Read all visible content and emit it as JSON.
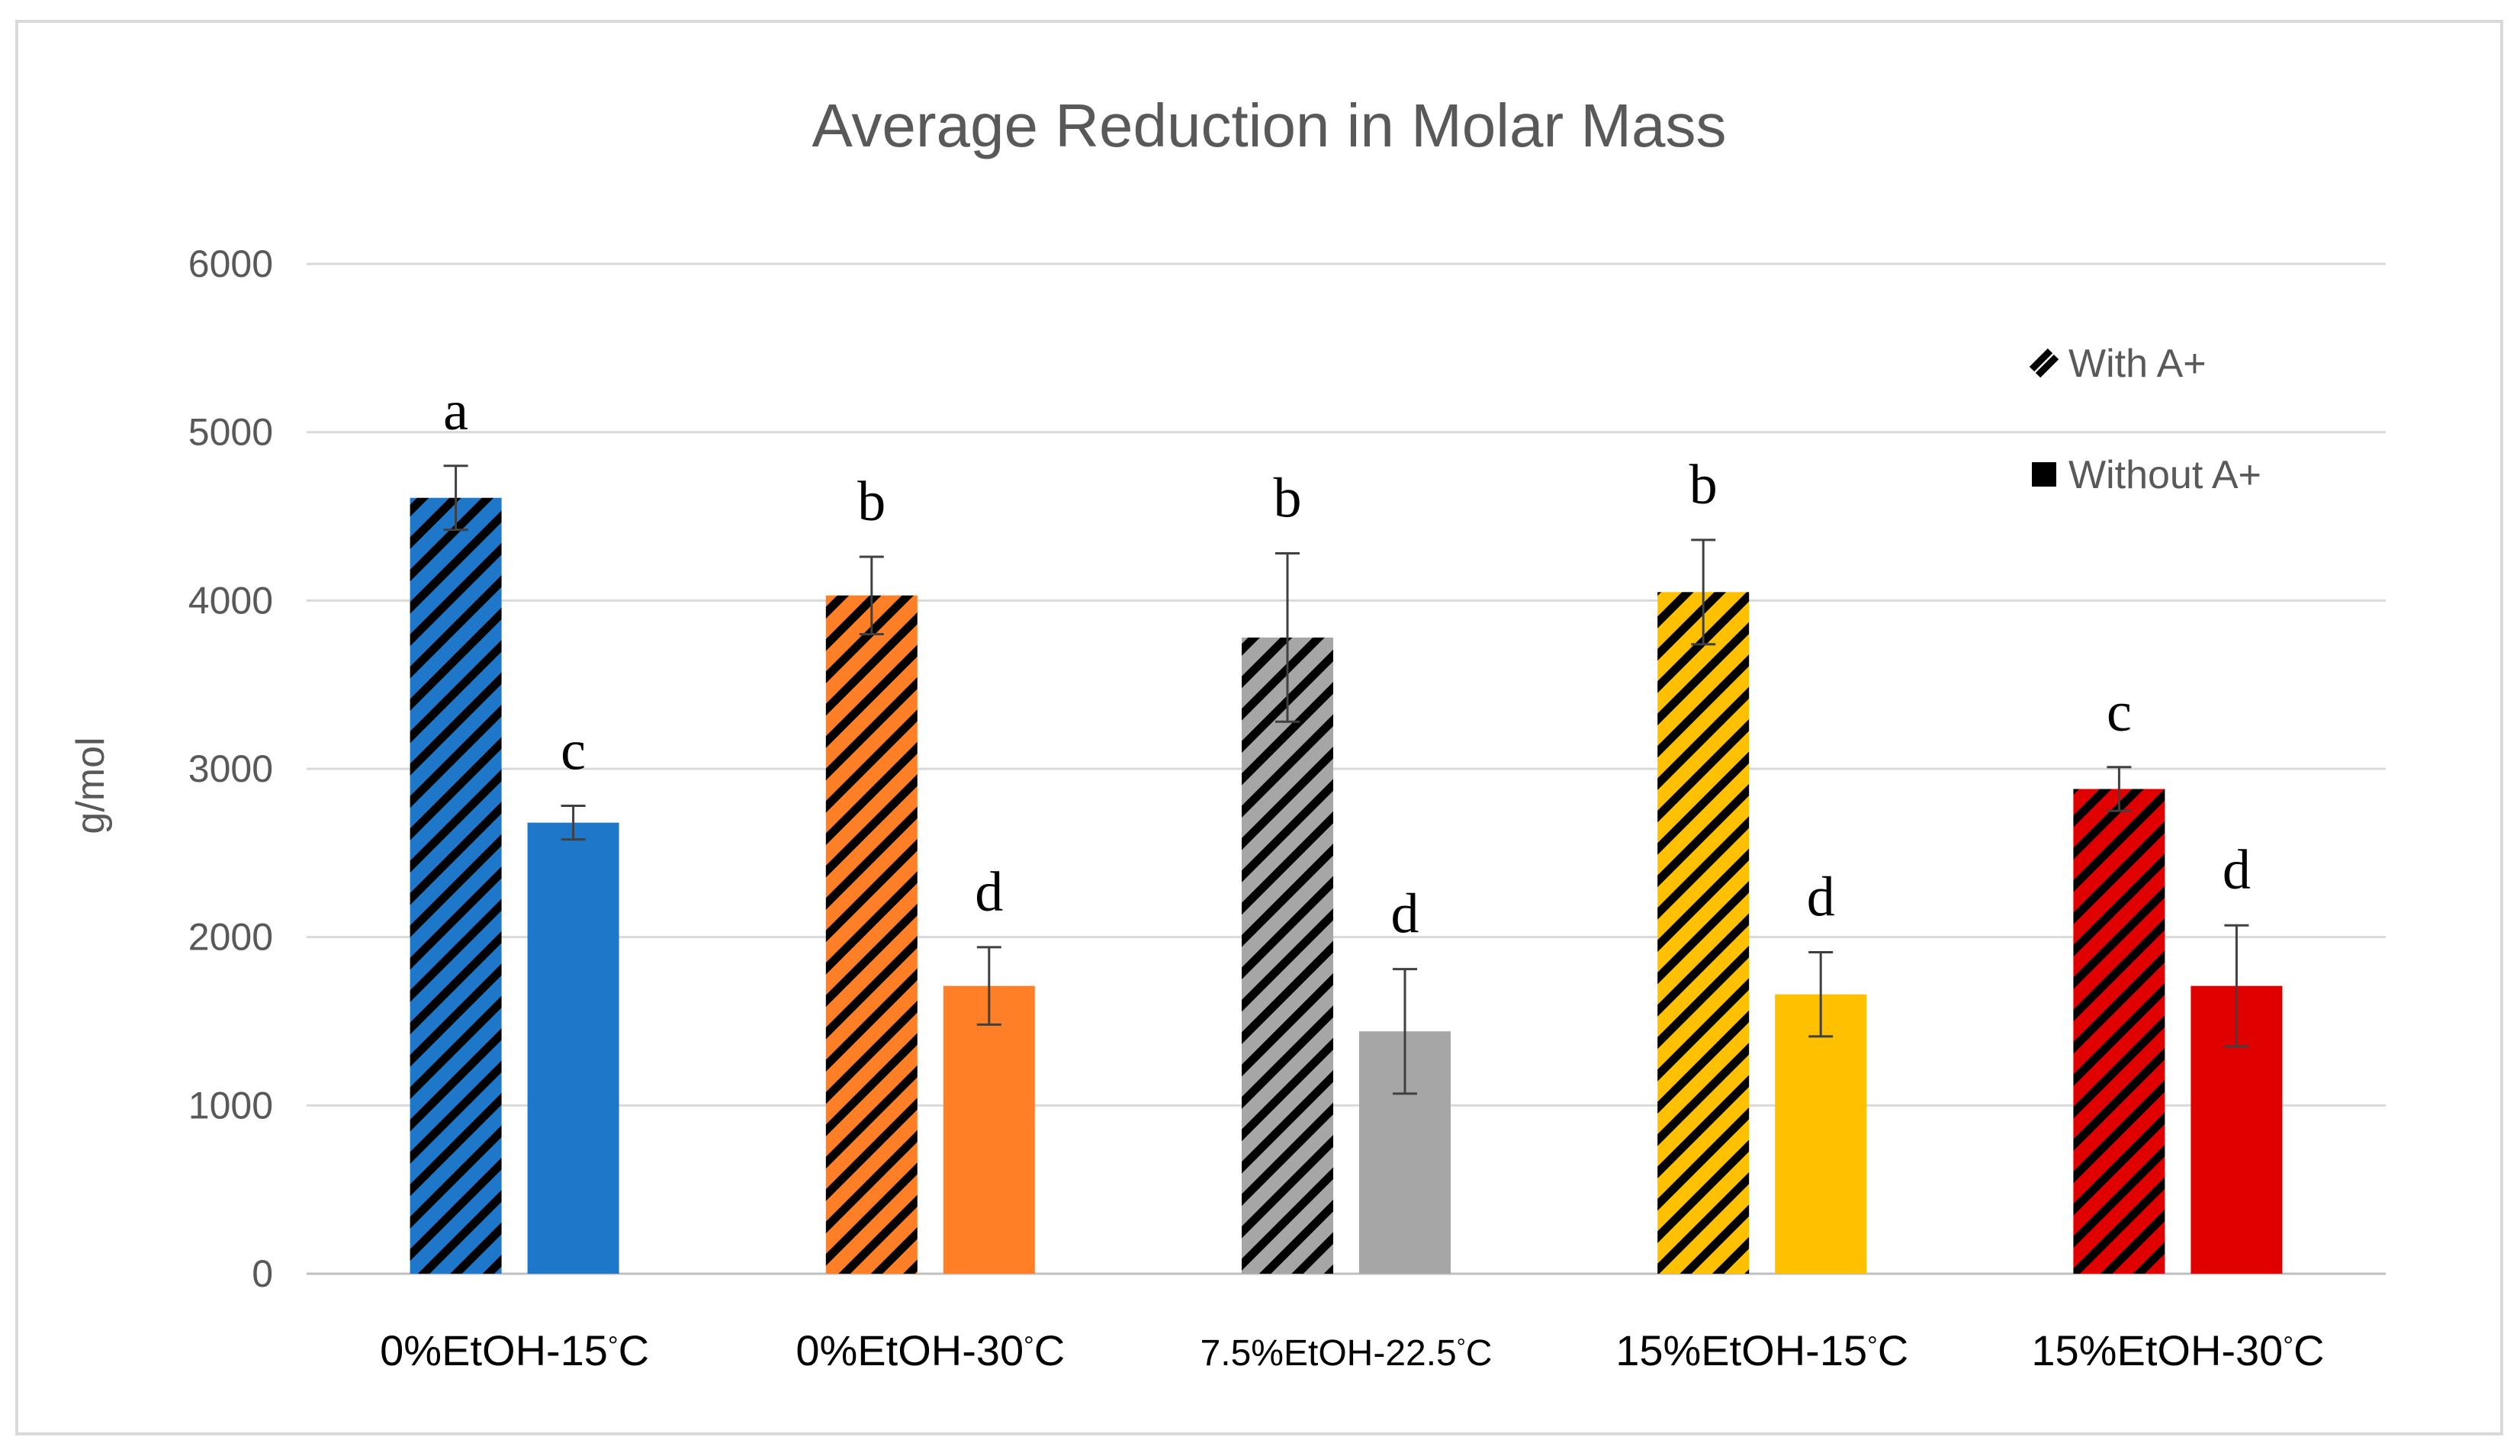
{
  "chart_data": {
    "type": "bar",
    "title": "Average Reduction in Molar Mass",
    "xlabel": "",
    "ylabel": "g/mol",
    "ylim": [
      0,
      6000
    ],
    "yticks": [
      "0",
      "1000",
      "2000",
      "3000",
      "4000",
      "5000",
      "6000"
    ],
    "grid": true,
    "legend_position": "top-right",
    "categories": [
      {
        "label": "0%EtOH-15",
        "unit": "°C"
      },
      {
        "label": "0%EtOH-30",
        "unit": "°C"
      },
      {
        "label": "7.5%EtOH-22.5",
        "unit": "°C"
      },
      {
        "label": "15%EtOH-15",
        "unit": "°C"
      },
      {
        "label": "15%EtOH-30",
        "unit": "°C"
      }
    ],
    "colors": [
      "#1f77c9",
      "#ff7f27",
      "#a6a6a6",
      "#ffc000",
      "#e00000"
    ],
    "series": [
      {
        "name": "With A+",
        "pattern": "hatched",
        "values": [
          4610,
          4030,
          3780,
          4050,
          2880
        ],
        "errors": [
          190,
          230,
          500,
          310,
          130
        ],
        "letters": [
          "a",
          "b",
          "b",
          "b",
          "c"
        ]
      },
      {
        "name": "Without A+",
        "pattern": "solid",
        "values": [
          2680,
          1710,
          1440,
          1660,
          1710
        ],
        "errors": [
          100,
          230,
          370,
          250,
          360
        ],
        "letters": [
          "c",
          "d",
          "d",
          "d",
          "d"
        ]
      }
    ]
  }
}
